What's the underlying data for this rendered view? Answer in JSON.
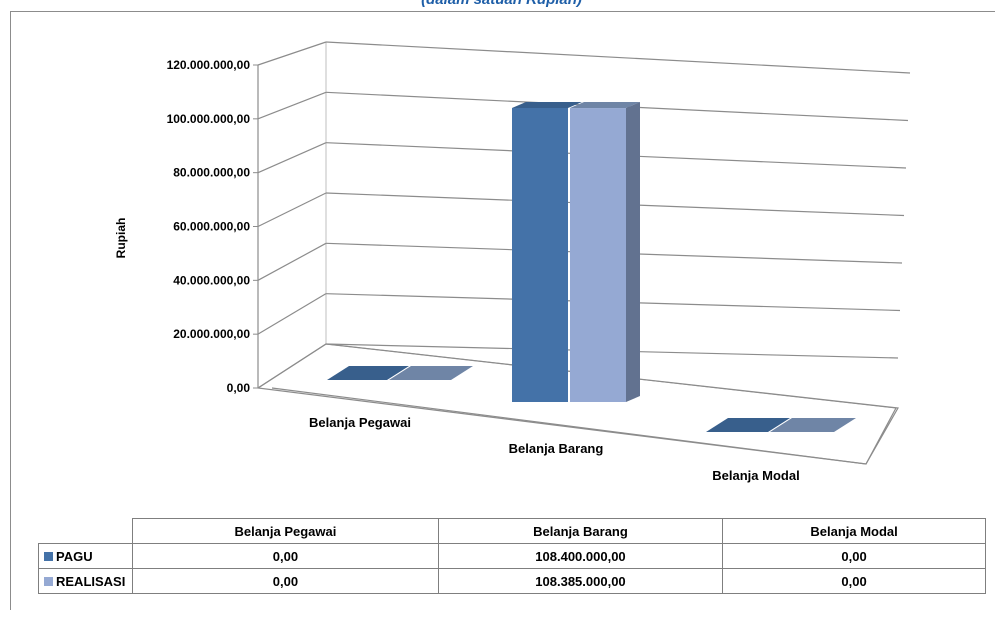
{
  "subtitle": "(dalam satuan Rupiah)",
  "colors": {
    "pagu": "#4472a8",
    "pagu_top": "#385f8c",
    "pagu_side": "#2f4f75",
    "realisasi": "#95a9d3",
    "realisasi_top": "#6f85a6",
    "realisasi_side": "#627290"
  },
  "chart_data": {
    "type": "bar",
    "title": "",
    "xlabel": "",
    "ylabel": "Rupiah",
    "ylim": [
      0,
      120000000
    ],
    "y_ticks": [
      "0,00",
      "20.000.000,00",
      "40.000.000,00",
      "60.000.000,00",
      "80.000.000,00",
      "100.000.000,00",
      "120.000.000,00"
    ],
    "grid": true,
    "legend": "data-table",
    "categories": [
      "Belanja Pegawai",
      "Belanja Barang",
      "Belanja Modal"
    ],
    "series": [
      {
        "name": "PAGU",
        "values": [
          0,
          108400000,
          0
        ]
      },
      {
        "name": "REALISASI",
        "values": [
          0,
          108385000,
          0
        ]
      }
    ]
  },
  "table": {
    "headers": [
      "Belanja Pegawai",
      "Belanja Barang",
      "Belanja Modal"
    ],
    "rows": [
      {
        "label": "PAGU",
        "cells": [
          "0,00",
          "108.400.000,00",
          "0,00"
        ]
      },
      {
        "label": "REALISASI",
        "cells": [
          "0,00",
          "108.385.000,00",
          "0,00"
        ]
      }
    ]
  }
}
